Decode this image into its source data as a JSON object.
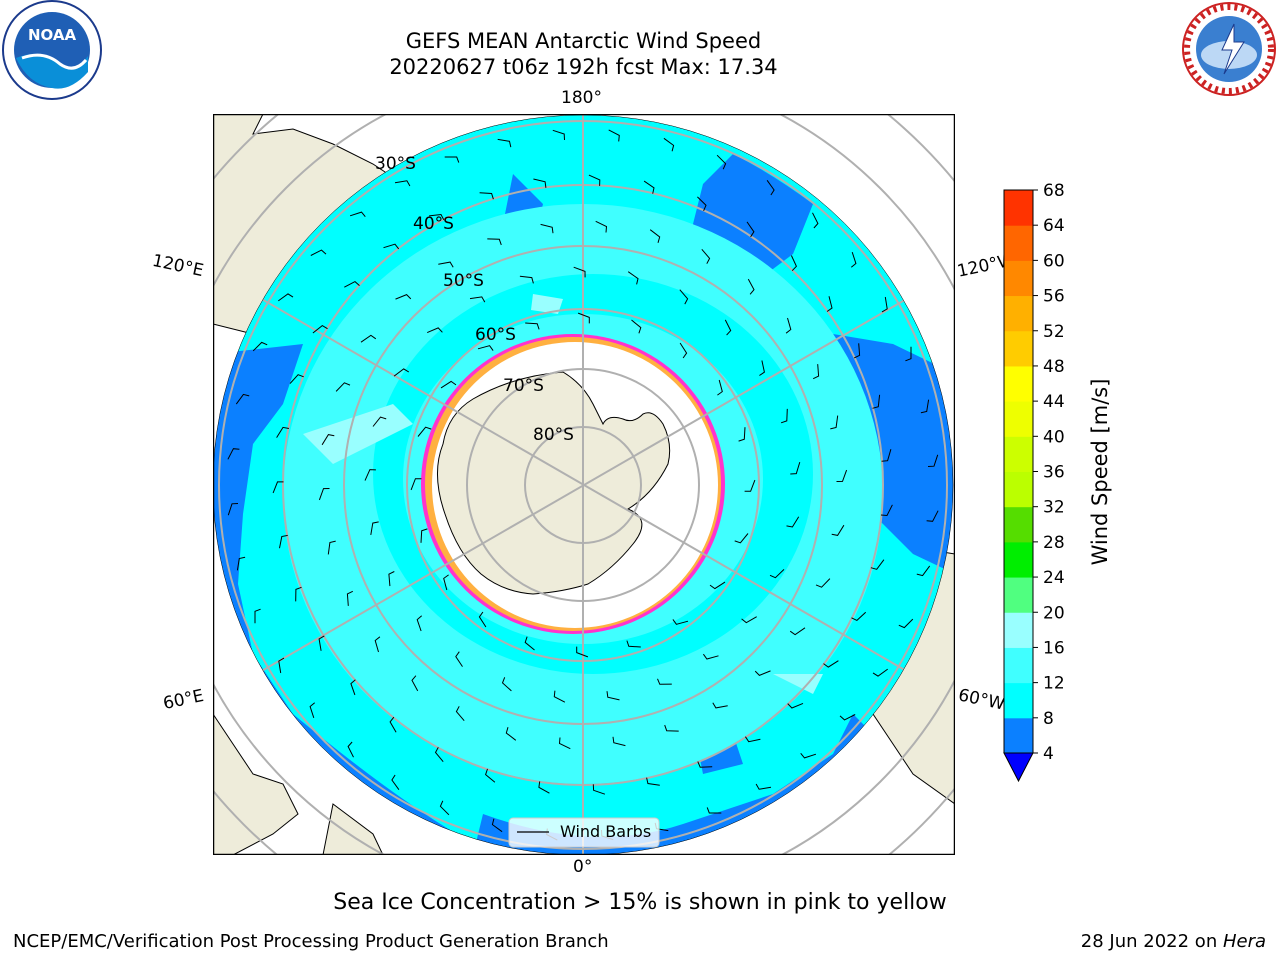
{
  "header": {
    "title_line1": "GEFS MEAN Antarctic Wind Speed",
    "title_line2": "20220627 t06z 192h fcst   Max: 17.34"
  },
  "logos": {
    "left": {
      "name": "noaa-logo",
      "text": "NOAA"
    },
    "right": {
      "name": "nws-logo",
      "ring_text": "NATIONAL WEATHER SERVICE"
    }
  },
  "map": {
    "projection": "south-polar-stereographic",
    "lon_labels": {
      "top": "180°",
      "bottom": "0°",
      "upper_left": "120°E",
      "upper_right": "120°W",
      "lower_left": "60°E",
      "lower_right": "60°W"
    },
    "lat_labels": [
      "30°S",
      "40°S",
      "50°S",
      "60°S",
      "70°S",
      "80°S"
    ],
    "legend_label": "Wind Barbs",
    "colors": {
      "land": "#eeecda",
      "ocean_4_8": "#0b80ff",
      "ocean_8_12": "#00ffff",
      "ocean_12_16": "#40ffff",
      "ocean_16_20": "#99ffff",
      "sea_ice": "#ffffff",
      "ice_edge_pink": "#ff33cc",
      "ice_edge_orange": "#ffb040",
      "grid": "#b0b0b0"
    }
  },
  "colorbar": {
    "label": "Wind Speed [m/s]",
    "ticks": [
      "4",
      "8",
      "12",
      "16",
      "20",
      "24",
      "28",
      "32",
      "36",
      "40",
      "44",
      "48",
      "52",
      "56",
      "60",
      "64",
      "68"
    ],
    "colors": [
      "#0b80ff",
      "#00ffff",
      "#40ffff",
      "#99ffff",
      "#50ff80",
      "#00ee00",
      "#55dd00",
      "#bbff00",
      "#ccff00",
      "#eeff00",
      "#ffff00",
      "#ffcc00",
      "#ffb000",
      "#ff8800",
      "#ff6600",
      "#ff3300",
      "#ff0000"
    ],
    "extend_color": "#0000ff"
  },
  "footer": {
    "note": "Sea Ice Concentration > 15% is shown in pink to yellow",
    "left": "NCEP/EMC/Verification Post Processing Product Generation Branch",
    "right_prefix": "28 Jun 2022 on ",
    "right_machine": "Hera"
  }
}
